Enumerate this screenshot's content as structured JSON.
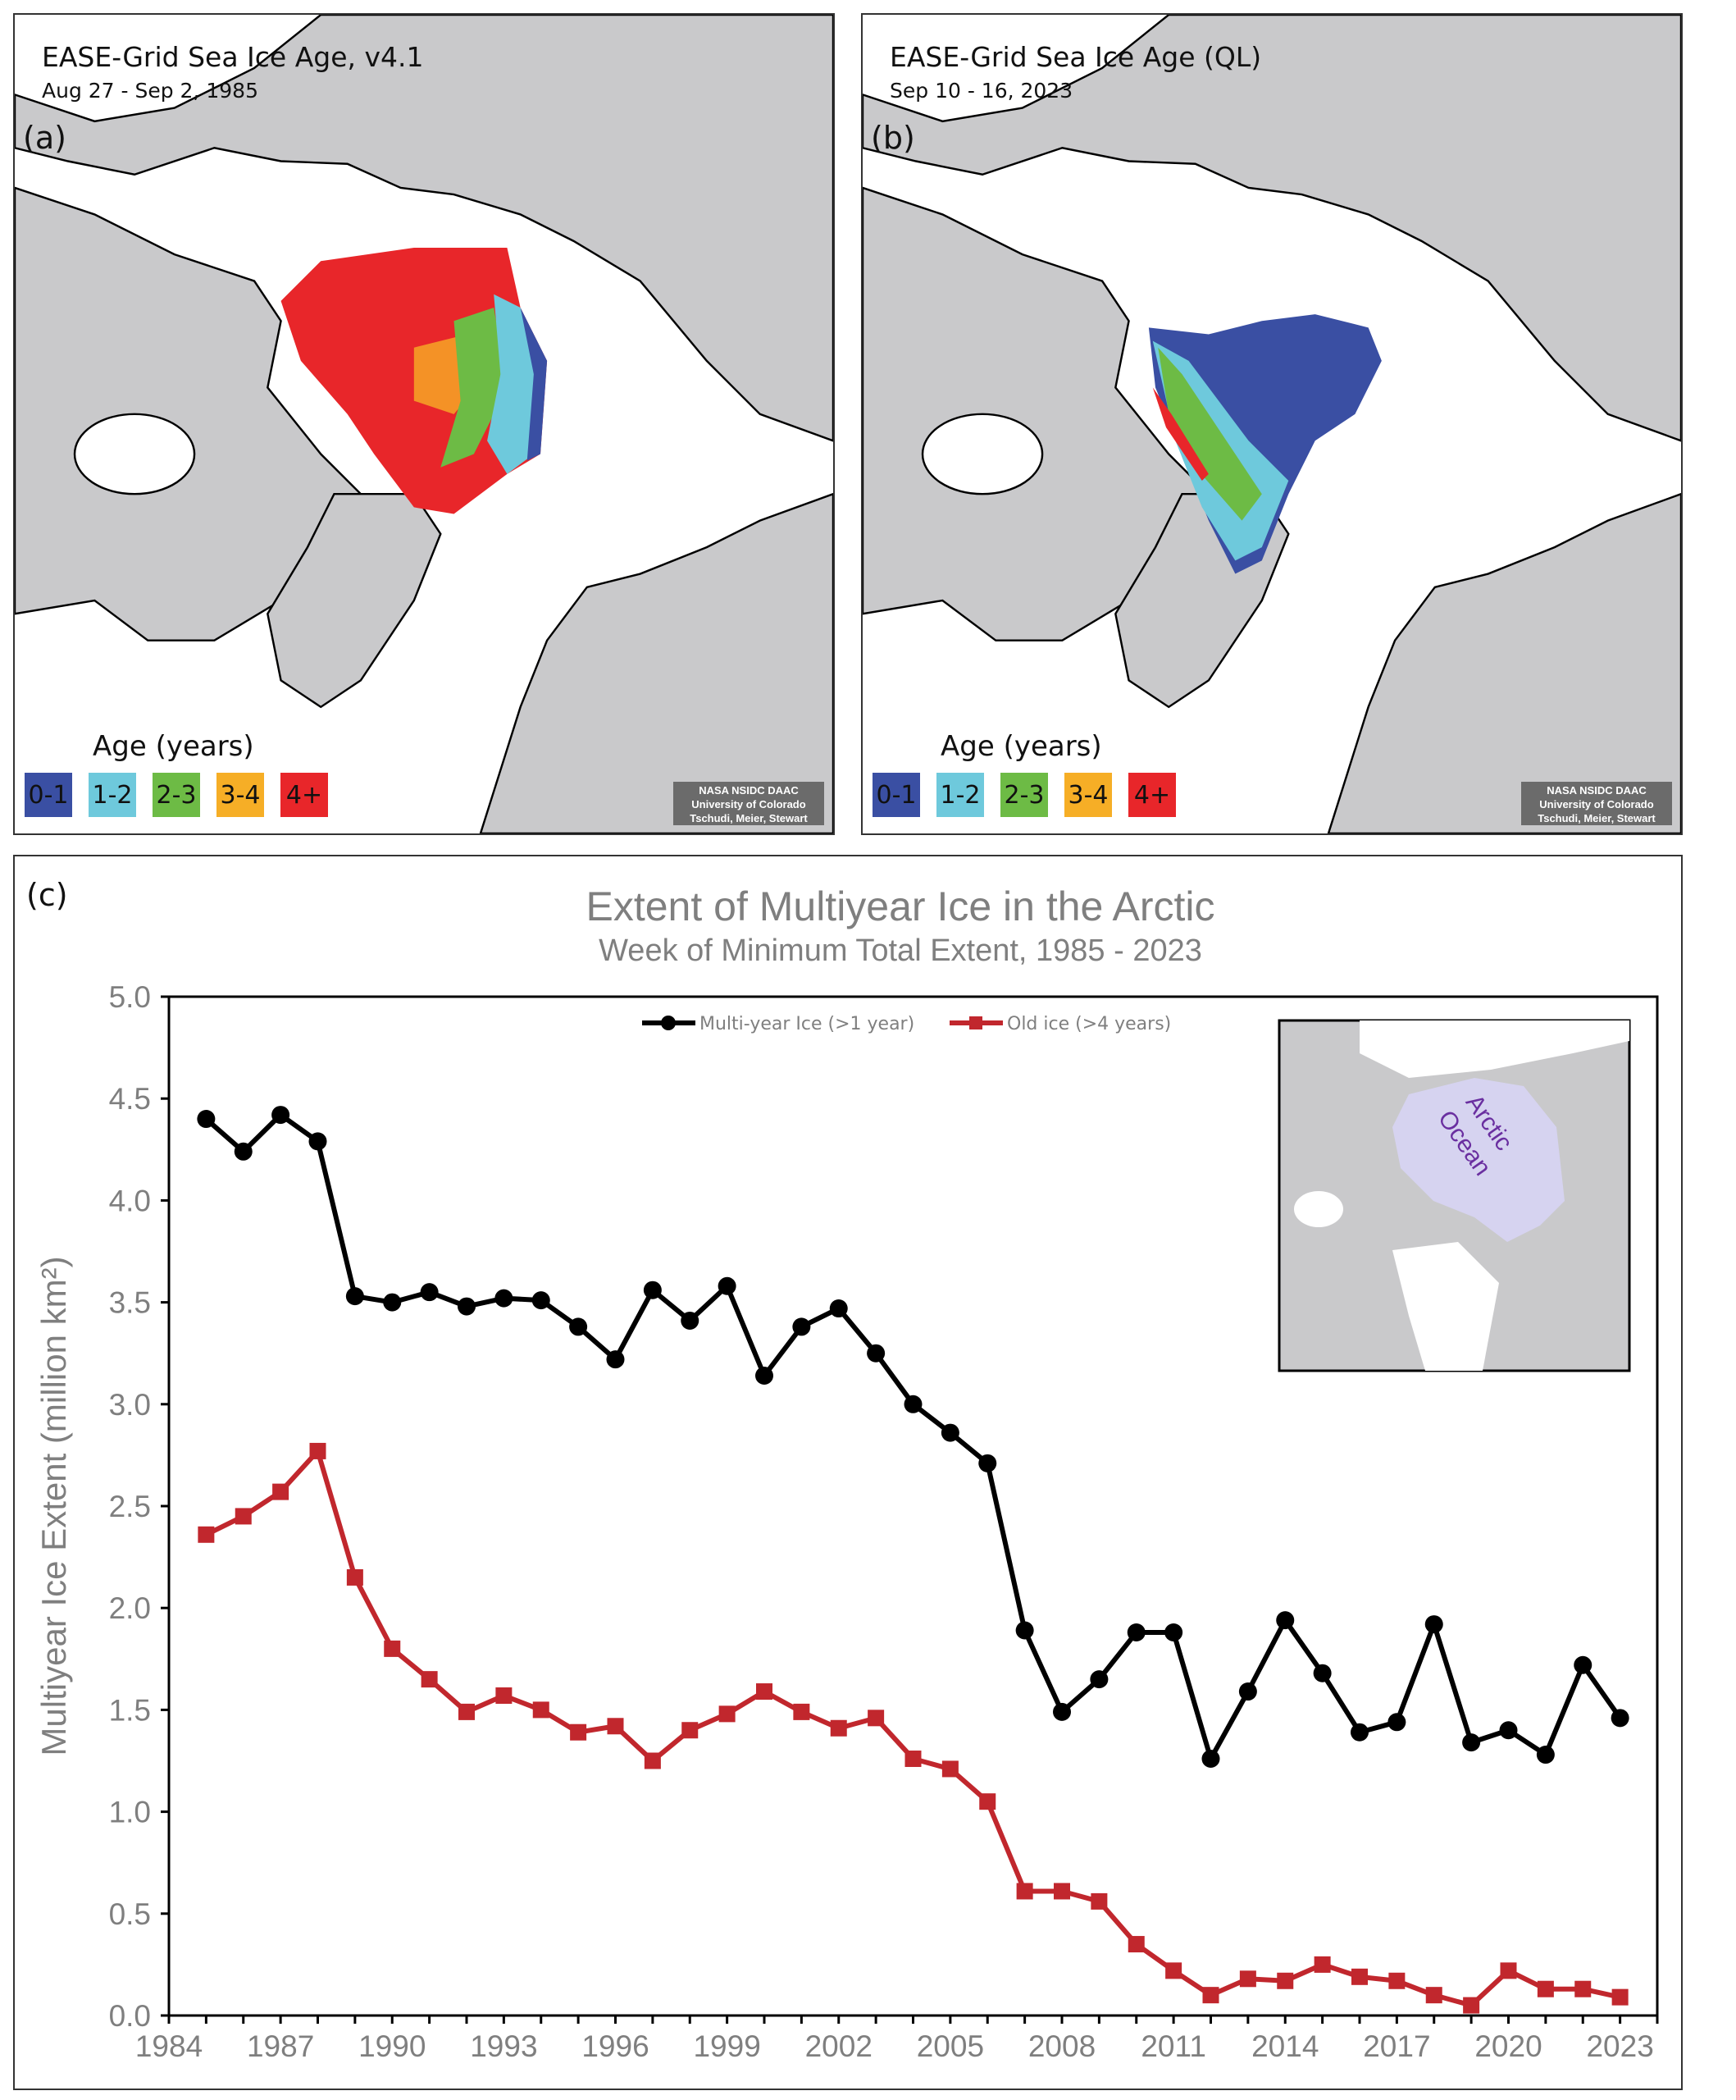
{
  "panel_a": {
    "label": "(a)",
    "title": "EASE-Grid Sea Ice Age, v4.1",
    "date": "Aug 27 - Sep 2, 1985",
    "legend_title": "Age (years)",
    "legend": [
      {
        "label": "0-1",
        "color": "#3a4fa3"
      },
      {
        "label": "1-2",
        "color": "#6ec9dc"
      },
      {
        "label": "2-3",
        "color": "#6dbb45"
      },
      {
        "label": "3-4",
        "color": "#f6ae26"
      },
      {
        "label": "4+",
        "color": "#e8262a"
      }
    ],
    "attribution": [
      "NASA NSIDC DAAC",
      "University of Colorado",
      "Tschudi, Meier, Stewart"
    ]
  },
  "panel_b": {
    "label": "(b)",
    "title": "EASE-Grid Sea Ice Age (QL)",
    "date": "Sep 10 - 16, 2023",
    "legend_title": "Age (years)",
    "legend": [
      {
        "label": "0-1",
        "color": "#3a4fa3"
      },
      {
        "label": "1-2",
        "color": "#6ec9dc"
      },
      {
        "label": "2-3",
        "color": "#6dbb45"
      },
      {
        "label": "3-4",
        "color": "#f6ae26"
      },
      {
        "label": "4+",
        "color": "#e8262a"
      }
    ],
    "attribution": [
      "NASA NSIDC DAAC",
      "University of Colorado",
      "Tschudi, Meier, Stewart"
    ]
  },
  "panel_c": {
    "label": "(c)",
    "inset": {
      "line1": "Arctic",
      "line2": "Ocean",
      "highlight_color": "#d6d3f0",
      "text_color": "#6a2fa0"
    }
  },
  "chart_data": {
    "type": "line",
    "title": "Extent of Multiyear Ice in the Arctic",
    "subtitle": "Week of Minimum Total Extent, 1985 - 2023",
    "xlabel": "",
    "ylabel": "Multiyear Ice Extent (million km²)",
    "xlim": [
      1984,
      2024
    ],
    "ylim": [
      0,
      5
    ],
    "xticks": [
      1984,
      1987,
      1990,
      1993,
      1996,
      1999,
      2002,
      2005,
      2008,
      2011,
      2014,
      2017,
      2020,
      2023
    ],
    "yticks": [
      "0.0",
      "0.5",
      "1.0",
      "1.5",
      "2.0",
      "2.5",
      "3.0",
      "3.5",
      "4.0",
      "4.5",
      "5.0"
    ],
    "grid": false,
    "legend_position": "top-center",
    "x": [
      1985,
      1986,
      1987,
      1988,
      1989,
      1990,
      1991,
      1992,
      1993,
      1994,
      1995,
      1996,
      1997,
      1998,
      1999,
      2000,
      2001,
      2002,
      2003,
      2004,
      2005,
      2006,
      2007,
      2008,
      2009,
      2010,
      2011,
      2012,
      2013,
      2014,
      2015,
      2016,
      2017,
      2018,
      2019,
      2020,
      2021,
      2022,
      2023
    ],
    "series": [
      {
        "name": "Multi-year Ice (>1 year)",
        "color": "#000000",
        "marker": "circle",
        "values": [
          4.4,
          4.24,
          4.42,
          4.29,
          3.53,
          3.5,
          3.55,
          3.48,
          3.52,
          3.51,
          3.38,
          3.22,
          3.56,
          3.41,
          3.58,
          3.14,
          3.38,
          3.47,
          3.25,
          3.0,
          2.86,
          2.71,
          1.89,
          1.49,
          1.65,
          1.88,
          1.88,
          1.26,
          1.59,
          1.94,
          1.68,
          1.39,
          1.44,
          1.92,
          1.34,
          1.4,
          1.28,
          1.72,
          1.46
        ]
      },
      {
        "name": "Old ice (>4 years)",
        "color": "#c1272d",
        "marker": "square",
        "values": [
          2.36,
          2.45,
          2.57,
          2.77,
          2.15,
          1.8,
          1.65,
          1.49,
          1.57,
          1.5,
          1.39,
          1.42,
          1.25,
          1.4,
          1.48,
          1.59,
          1.49,
          1.41,
          1.46,
          1.26,
          1.21,
          1.05,
          0.61,
          0.61,
          0.56,
          0.35,
          0.22,
          0.1,
          0.18,
          0.17,
          0.25,
          0.19,
          0.17,
          0.1,
          0.05,
          0.22,
          0.13,
          0.13,
          0.09
        ]
      }
    ]
  }
}
